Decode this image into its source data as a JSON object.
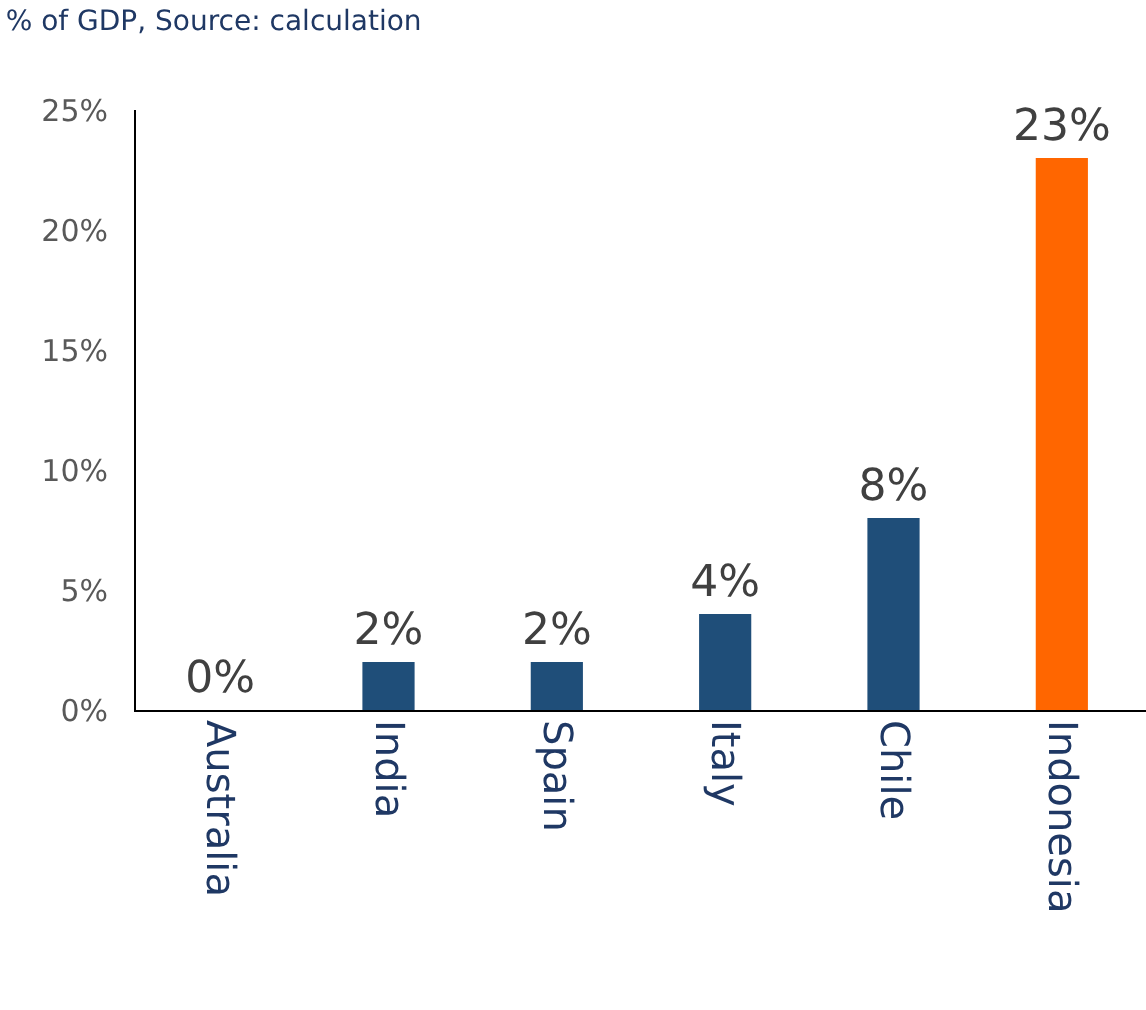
{
  "chart_data": {
    "type": "bar",
    "subtitle": "% of GDP, Source: calculation",
    "categories": [
      "Australia",
      "India",
      "Spain",
      "Italy",
      "Chile",
      "Indonesia"
    ],
    "values": [
      0,
      2,
      2,
      4,
      8,
      23
    ],
    "colors": [
      "#1f4e79",
      "#1f4e79",
      "#1f4e79",
      "#1f4e79",
      "#1f4e79",
      "#ff6600"
    ],
    "value_labels": [
      "0%",
      "2%",
      "2%",
      "4%",
      "8%",
      "23%"
    ],
    "ylim": [
      0,
      25
    ],
    "yticks": [
      {
        "value": 0,
        "label": "0%"
      },
      {
        "value": 5,
        "label": "5%"
      },
      {
        "value": 10,
        "label": "10%"
      },
      {
        "value": 15,
        "label": "15%"
      },
      {
        "value": 20,
        "label": "20%"
      },
      {
        "value": 25,
        "label": "25%"
      }
    ],
    "relative": false
  }
}
